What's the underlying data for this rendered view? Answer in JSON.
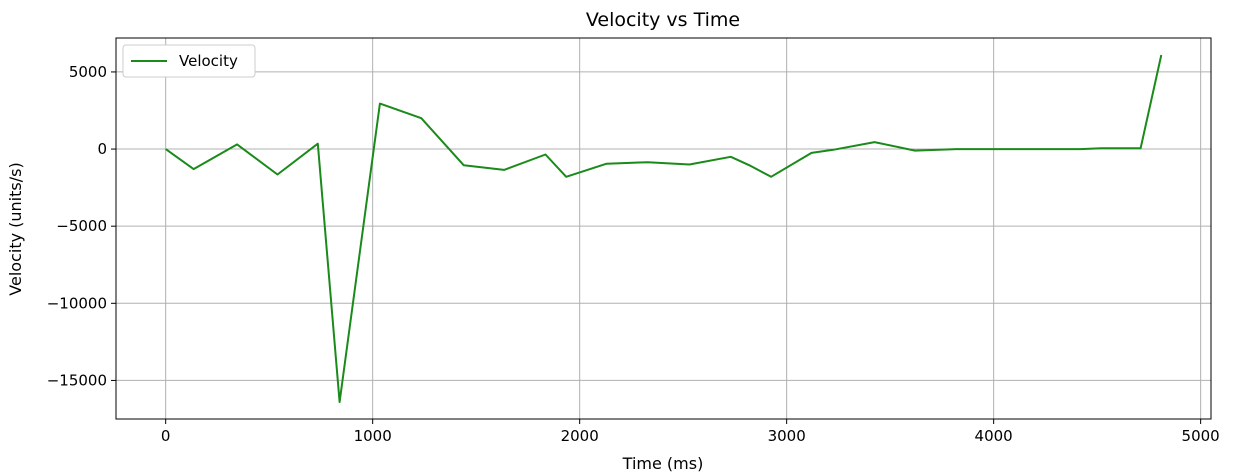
{
  "chart_data": {
    "type": "line",
    "title": "Velocity vs Time",
    "xlabel": "Time (ms)",
    "ylabel": "Velocity (units/s)",
    "xlim": [
      -240,
      5050
    ],
    "ylim": [
      -17500,
      7200
    ],
    "grid": true,
    "legend_position": "top-left",
    "x_ticks": [
      0,
      1000,
      2000,
      3000,
      4000,
      5000
    ],
    "x_tick_labels": [
      "0",
      "1000",
      "2000",
      "3000",
      "4000",
      "5000"
    ],
    "y_ticks": [
      5000,
      0,
      -5000,
      -10000,
      -15000
    ],
    "y_tick_labels": [
      "5000",
      "0",
      "−5000",
      "−10000",
      "−15000"
    ],
    "series": [
      {
        "name": "Velocity",
        "color": "#1a8a1a",
        "x": [
          0,
          135,
          345,
          540,
          735,
          840,
          1035,
          1235,
          1440,
          1635,
          1835,
          1935,
          2130,
          2330,
          2530,
          2730,
          2820,
          2925,
          3120,
          3225,
          3425,
          3620,
          3820,
          4420,
          4520,
          4710,
          4810
        ],
        "values": [
          0,
          -1300,
          300,
          -1650,
          350,
          -16400,
          2950,
          2000,
          -1050,
          -1350,
          -350,
          -1800,
          -950,
          -850,
          -1000,
          -500,
          -1050,
          -1800,
          -250,
          -50,
          450,
          -100,
          0,
          0,
          50,
          50,
          6100
        ]
      }
    ]
  }
}
